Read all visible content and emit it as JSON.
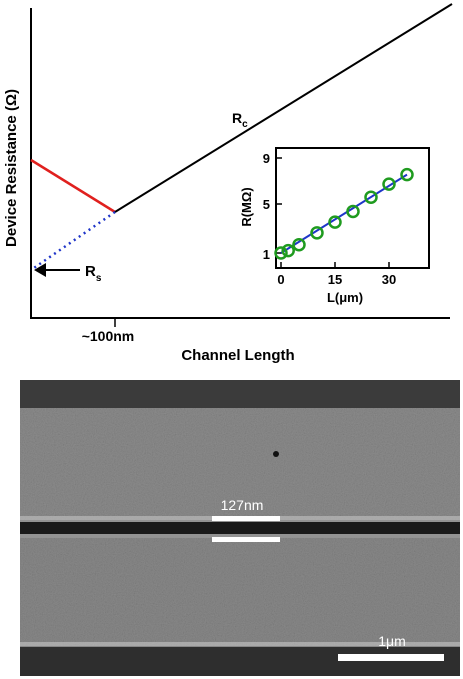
{
  "main_plot": {
    "ylabel": "Device Resistance (Ω)",
    "xlabel": "Channel Length",
    "x_tick_label": "~100nm",
    "rc_label_main": "R",
    "rc_label_sub": "c",
    "rs_label_main": "R",
    "rs_label_sub": "s",
    "rs_arrow": "←"
  },
  "inset": {
    "ylabel": "R(MΩ)",
    "xlabel": "L(μm)"
  },
  "sem_image": {
    "gap_label": "127nm",
    "scale_label": "1μm"
  },
  "colors": {
    "main_line": "#000000",
    "short_channel_line": "#e0201e",
    "extrapolation_dots": "#1f35c9",
    "inset_fit_line": "#1f35c9",
    "inset_markers": "#1f9b1f"
  },
  "chart_data": [
    {
      "type": "line",
      "title": "",
      "xlabel": "Channel Length",
      "ylabel": "Device Resistance (Ω)",
      "xticks": [
        "~100nm"
      ],
      "series": [
        {
          "name": "R",
          "values_note": "",
          "x": [
            0,
            100
          ],
          "y_relative": [
            0.66,
            0.38
          ],
          "color": "#e0201e"
        },
        {
          "name": "R",
          "x": [
            100,
            445
          ],
          "y_relative": [
            0.38,
            1.0
          ],
          "color": "#000000"
        }
      ],
      "annotations": [
        "R",
        "R"
      ],
      "grid": false
    },
    {
      "type": "scatter",
      "title": "",
      "xlabel": "L(μm)",
      "ylabel": "R(MΩ)",
      "xlim": [
        0,
        37
      ],
      "ylim": [
        0,
        9.6
      ],
      "xticks": [
        0,
        15,
        30
      ],
      "yticks": [
        1,
        5,
        9
      ],
      "x": [
        0,
        2,
        5,
        10,
        15,
        20,
        25,
        30,
        35
      ],
      "y": [
        1.0,
        1.2,
        1.7,
        2.7,
        3.6,
        4.5,
        5.7,
        6.8,
        7.6
      ],
      "fit_line": {
        "x": [
          0,
          35
        ],
        "y": [
          1.0,
          7.6
        ]
      },
      "grid": false
    }
  ]
}
